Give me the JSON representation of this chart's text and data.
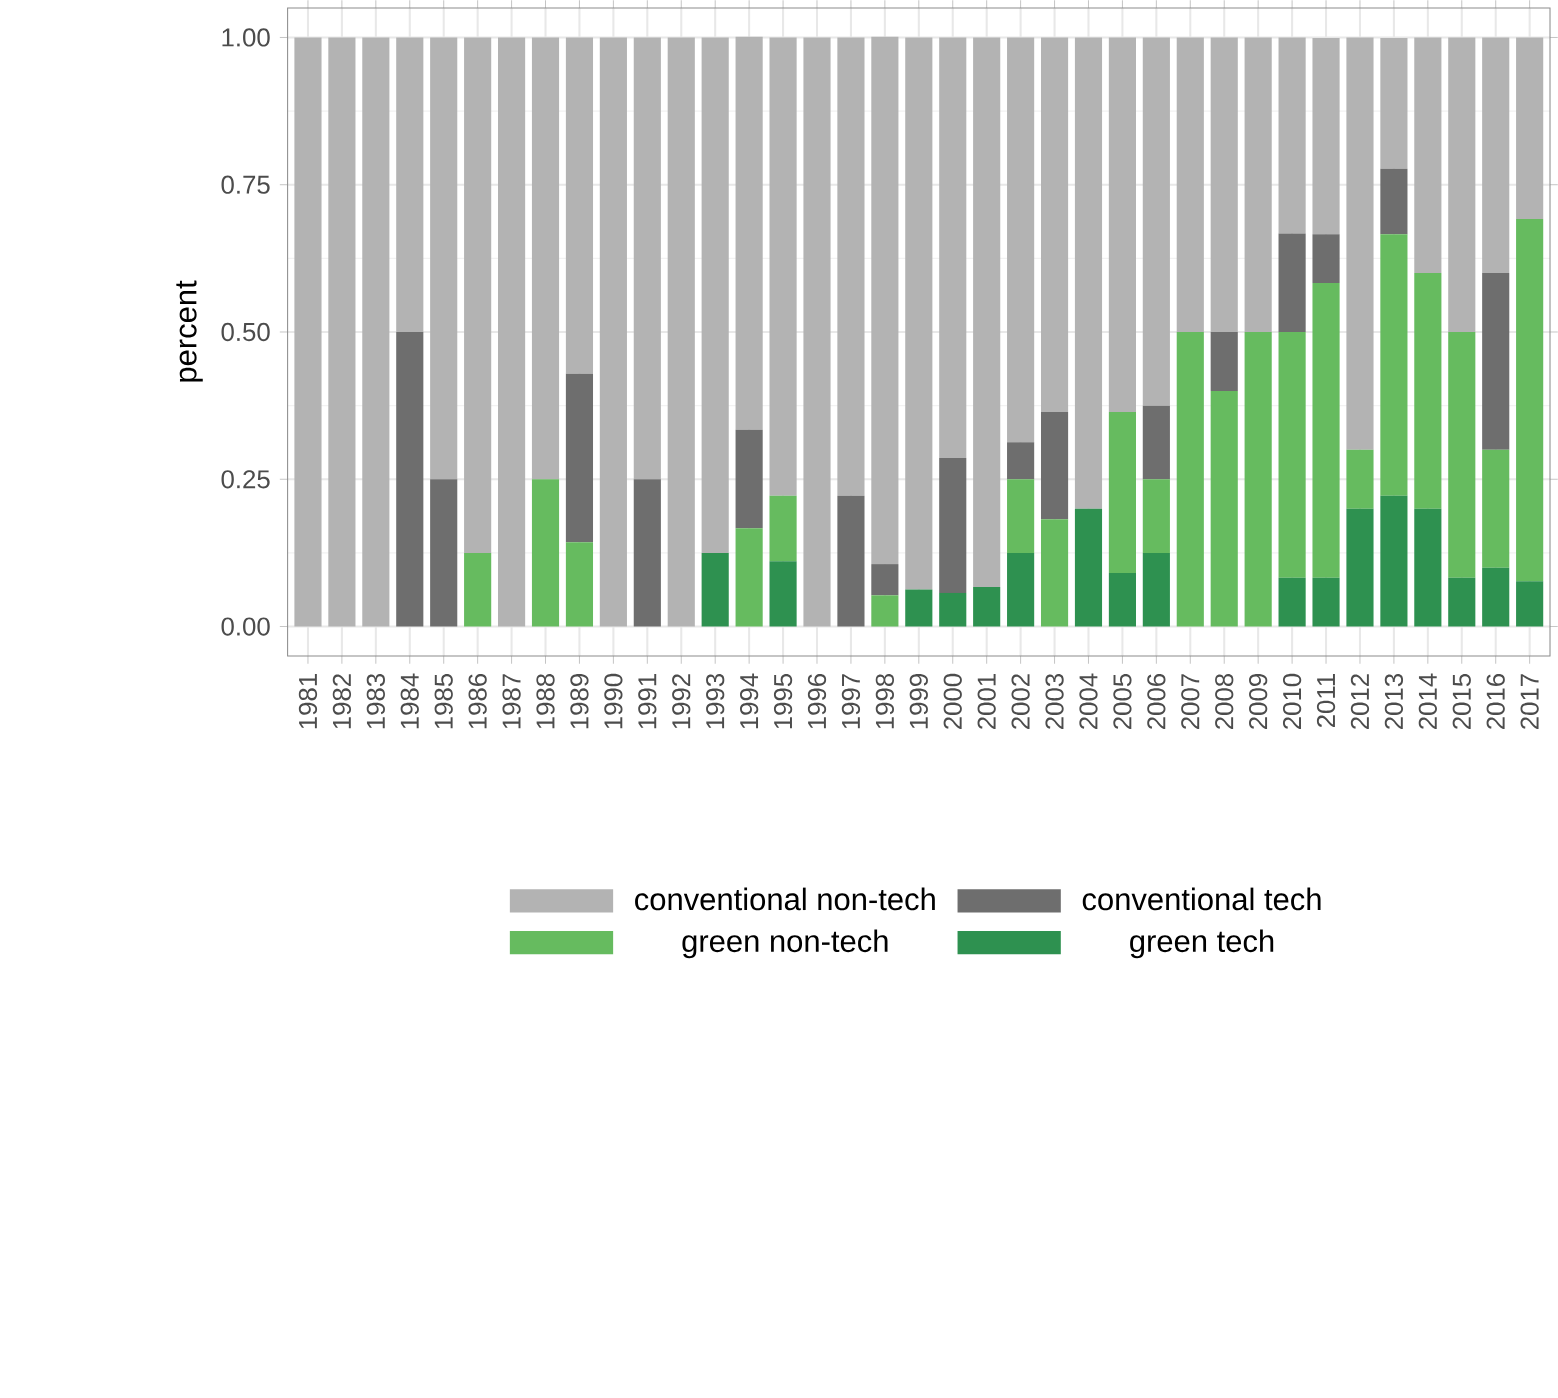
{
  "chart_data": {
    "type": "bar",
    "stacked": true,
    "ylabel": "percent",
    "legend": "bottom",
    "grid": true,
    "categories": [
      "1981",
      "1982",
      "1983",
      "1984",
      "1985",
      "1986",
      "1987",
      "1988",
      "1989",
      "1990",
      "1991",
      "1992",
      "1993",
      "1994",
      "1995",
      "1996",
      "1997",
      "1998",
      "1999",
      "2000",
      "2001",
      "2002",
      "2003",
      "2004",
      "2005",
      "2006",
      "2007",
      "2008",
      "2009",
      "2010",
      "2011",
      "2012",
      "2013",
      "2014",
      "2015",
      "2016",
      "2017"
    ],
    "ylim": [
      -0.05,
      1.05
    ],
    "yticks": [
      {
        "value": 0,
        "label": "0.00"
      },
      {
        "value": 0.25,
        "label": "0.25"
      },
      {
        "value": 0.5,
        "label": "0.50"
      },
      {
        "value": 0.75,
        "label": "0.75"
      },
      {
        "value": 1,
        "label": "1.00"
      }
    ],
    "series": [
      {
        "name": "green tech",
        "color": "#2e9150",
        "values": [
          0,
          0,
          0,
          0,
          0,
          0,
          0,
          0,
          0,
          0,
          0,
          0,
          0.125,
          0,
          0.111,
          0,
          0,
          0,
          0.063,
          0.057,
          0.067,
          0.125,
          0,
          0.2,
          0.091,
          0.125,
          0,
          0,
          0,
          0.083,
          0.083,
          0.2,
          0.222,
          0.2,
          0.083,
          0.1,
          0.077
        ]
      },
      {
        "name": "green non-tech",
        "color": "#66bb5f",
        "values": [
          0,
          0,
          0,
          0,
          0,
          0.125,
          0,
          0.25,
          0.143,
          0,
          0,
          0,
          0,
          0.167,
          0.111,
          0,
          0,
          0.053,
          0,
          0,
          0,
          0.125,
          0.182,
          0,
          0.273,
          0.125,
          0.5,
          0.4,
          0.5,
          0.417,
          0.5,
          0.1,
          0.444,
          0.4,
          0.417,
          0.2,
          0.615
        ]
      },
      {
        "name": "conventional tech",
        "color": "#6e6e6e",
        "values": [
          0,
          0,
          0,
          0.5,
          0.25,
          0,
          0,
          0,
          0.286,
          0,
          0.25,
          0,
          0,
          0.167,
          0,
          0,
          0.222,
          0.053,
          0,
          0.229,
          0,
          0.063,
          0.182,
          0,
          0,
          0.125,
          0,
          0.1,
          0,
          0.167,
          0.083,
          0,
          0.111,
          0,
          0,
          0.3,
          0
        ]
      },
      {
        "name": "conventional non-tech",
        "color": "#b3b3b3",
        "values": [
          1,
          1,
          1,
          0.5,
          0.75,
          0.875,
          1,
          0.75,
          0.571,
          1,
          0.75,
          1,
          0.875,
          0.667,
          0.778,
          1,
          0.778,
          0.895,
          0.937,
          0.714,
          0.933,
          0.687,
          0.636,
          0.8,
          0.636,
          0.625,
          0.5,
          0.5,
          0.5,
          0.333,
          0.333,
          0.7,
          0.222,
          0.4,
          0.5,
          0.4,
          0.308
        ]
      }
    ]
  }
}
